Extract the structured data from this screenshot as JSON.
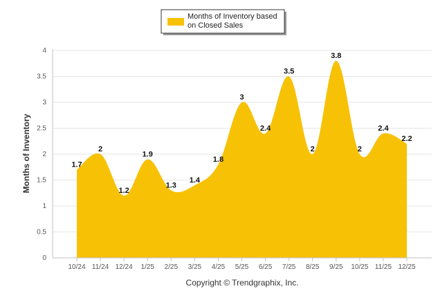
{
  "chart_data": {
    "type": "area",
    "categories": [
      "10/24",
      "11/24",
      "12/24",
      "1/25",
      "2/25",
      "3/25",
      "4/25",
      "5/25",
      "6/25",
      "7/25",
      "8/25",
      "9/25",
      "10/25",
      "11/25",
      "12/25"
    ],
    "series": [
      {
        "name": "Months of Inventory based on Closed Sales",
        "values": [
          1.7,
          2,
          1.2,
          1.9,
          1.3,
          1.4,
          1.8,
          3,
          2.4,
          3.5,
          2,
          3.8,
          2,
          2.4,
          2.2
        ],
        "color": "#F7C106"
      }
    ],
    "data_labels": [
      "1.7",
      "2",
      "1.2",
      "1.9",
      "1.3",
      "1.4",
      "1.8",
      "3",
      "2.4",
      "3.5",
      "2",
      "3.8",
      "2",
      "2.4",
      "2.2"
    ],
    "y_ticks": [
      "0",
      "0.5",
      "1",
      "1.5",
      "2",
      "2.5",
      "3",
      "3.5",
      "4"
    ],
    "ylim": [
      0,
      4
    ],
    "ylabel": "Months of Inventory",
    "xlabel": "",
    "legend": {
      "line1": "Months of Inventory based",
      "line2": "on Closed Sales",
      "placement": "top-center"
    },
    "grid": true
  },
  "credit": "Copyright © Trendgraphix, Inc."
}
